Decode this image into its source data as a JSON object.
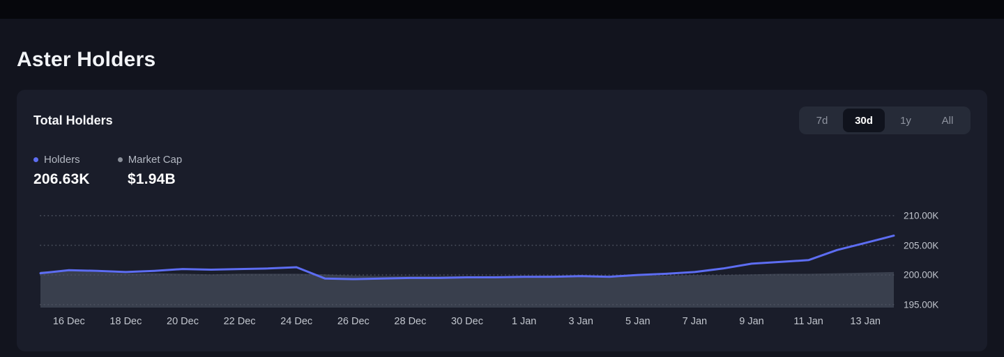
{
  "page": {
    "title": "Aster Holders"
  },
  "card": {
    "title": "Total Holders",
    "ranges": [
      {
        "label": "7d",
        "selected": false
      },
      {
        "label": "30d",
        "selected": true
      },
      {
        "label": "1y",
        "selected": false
      },
      {
        "label": "All",
        "selected": false
      }
    ],
    "legend": [
      {
        "label": "Holders",
        "value": "206.63K",
        "color": "#5d6df2"
      },
      {
        "label": "Market Cap",
        "value": "$1.94B",
        "color": "#8a8f99"
      }
    ]
  },
  "chart_data": {
    "type": "line",
    "title": "Total Holders",
    "x": [
      "15 Dec",
      "16 Dec",
      "17 Dec",
      "18 Dec",
      "19 Dec",
      "20 Dec",
      "21 Dec",
      "22 Dec",
      "23 Dec",
      "24 Dec",
      "25 Dec",
      "26 Dec",
      "27 Dec",
      "28 Dec",
      "29 Dec",
      "30 Dec",
      "31 Dec",
      "1 Jan",
      "2 Jan",
      "3 Jan",
      "4 Jan",
      "5 Jan",
      "6 Jan",
      "7 Jan",
      "8 Jan",
      "9 Jan",
      "10 Jan",
      "11 Jan",
      "12 Jan",
      "13 Jan",
      "14 Jan"
    ],
    "xtick_indices": [
      1,
      3,
      5,
      7,
      9,
      11,
      13,
      15,
      17,
      19,
      21,
      23,
      25,
      27,
      29
    ],
    "series": [
      {
        "name": "Holders",
        "unit": "K holders",
        "color": "#5d6df2",
        "style": "line",
        "current_value": "206.63K",
        "values": [
          200.3,
          200.8,
          200.7,
          200.5,
          200.7,
          201.0,
          200.9,
          201.0,
          201.1,
          201.3,
          199.4,
          199.3,
          199.4,
          199.5,
          199.5,
          199.6,
          199.6,
          199.7,
          199.7,
          199.8,
          199.7,
          200.0,
          200.2,
          200.5,
          201.1,
          201.9,
          202.2,
          202.5,
          204.2,
          205.4,
          206.63
        ]
      },
      {
        "name": "Market Cap",
        "unit": "scaled to holders axis (actual current value $1.94B)",
        "color": "#4d5463",
        "style": "area",
        "current_value": "$1.94B",
        "values": [
          200.6,
          200.7,
          200.5,
          200.3,
          200.3,
          200.2,
          200.1,
          200.2,
          200.2,
          200.2,
          200.1,
          199.9,
          199.8,
          199.8,
          199.8,
          199.8,
          199.8,
          199.8,
          199.9,
          199.9,
          199.8,
          199.9,
          199.9,
          200.0,
          200.0,
          200.1,
          200.2,
          200.2,
          200.3,
          200.4,
          200.5
        ]
      }
    ],
    "yticks": [
      {
        "label": "210.00K",
        "value": 210
      },
      {
        "label": "205.00K",
        "value": 205
      },
      {
        "label": "200.00K",
        "value": 200
      },
      {
        "label": "195.00K",
        "value": 195
      }
    ],
    "ylim": [
      194.5,
      212.1
    ],
    "grid": "dotted-horizontal",
    "legend_position": "top-left"
  }
}
